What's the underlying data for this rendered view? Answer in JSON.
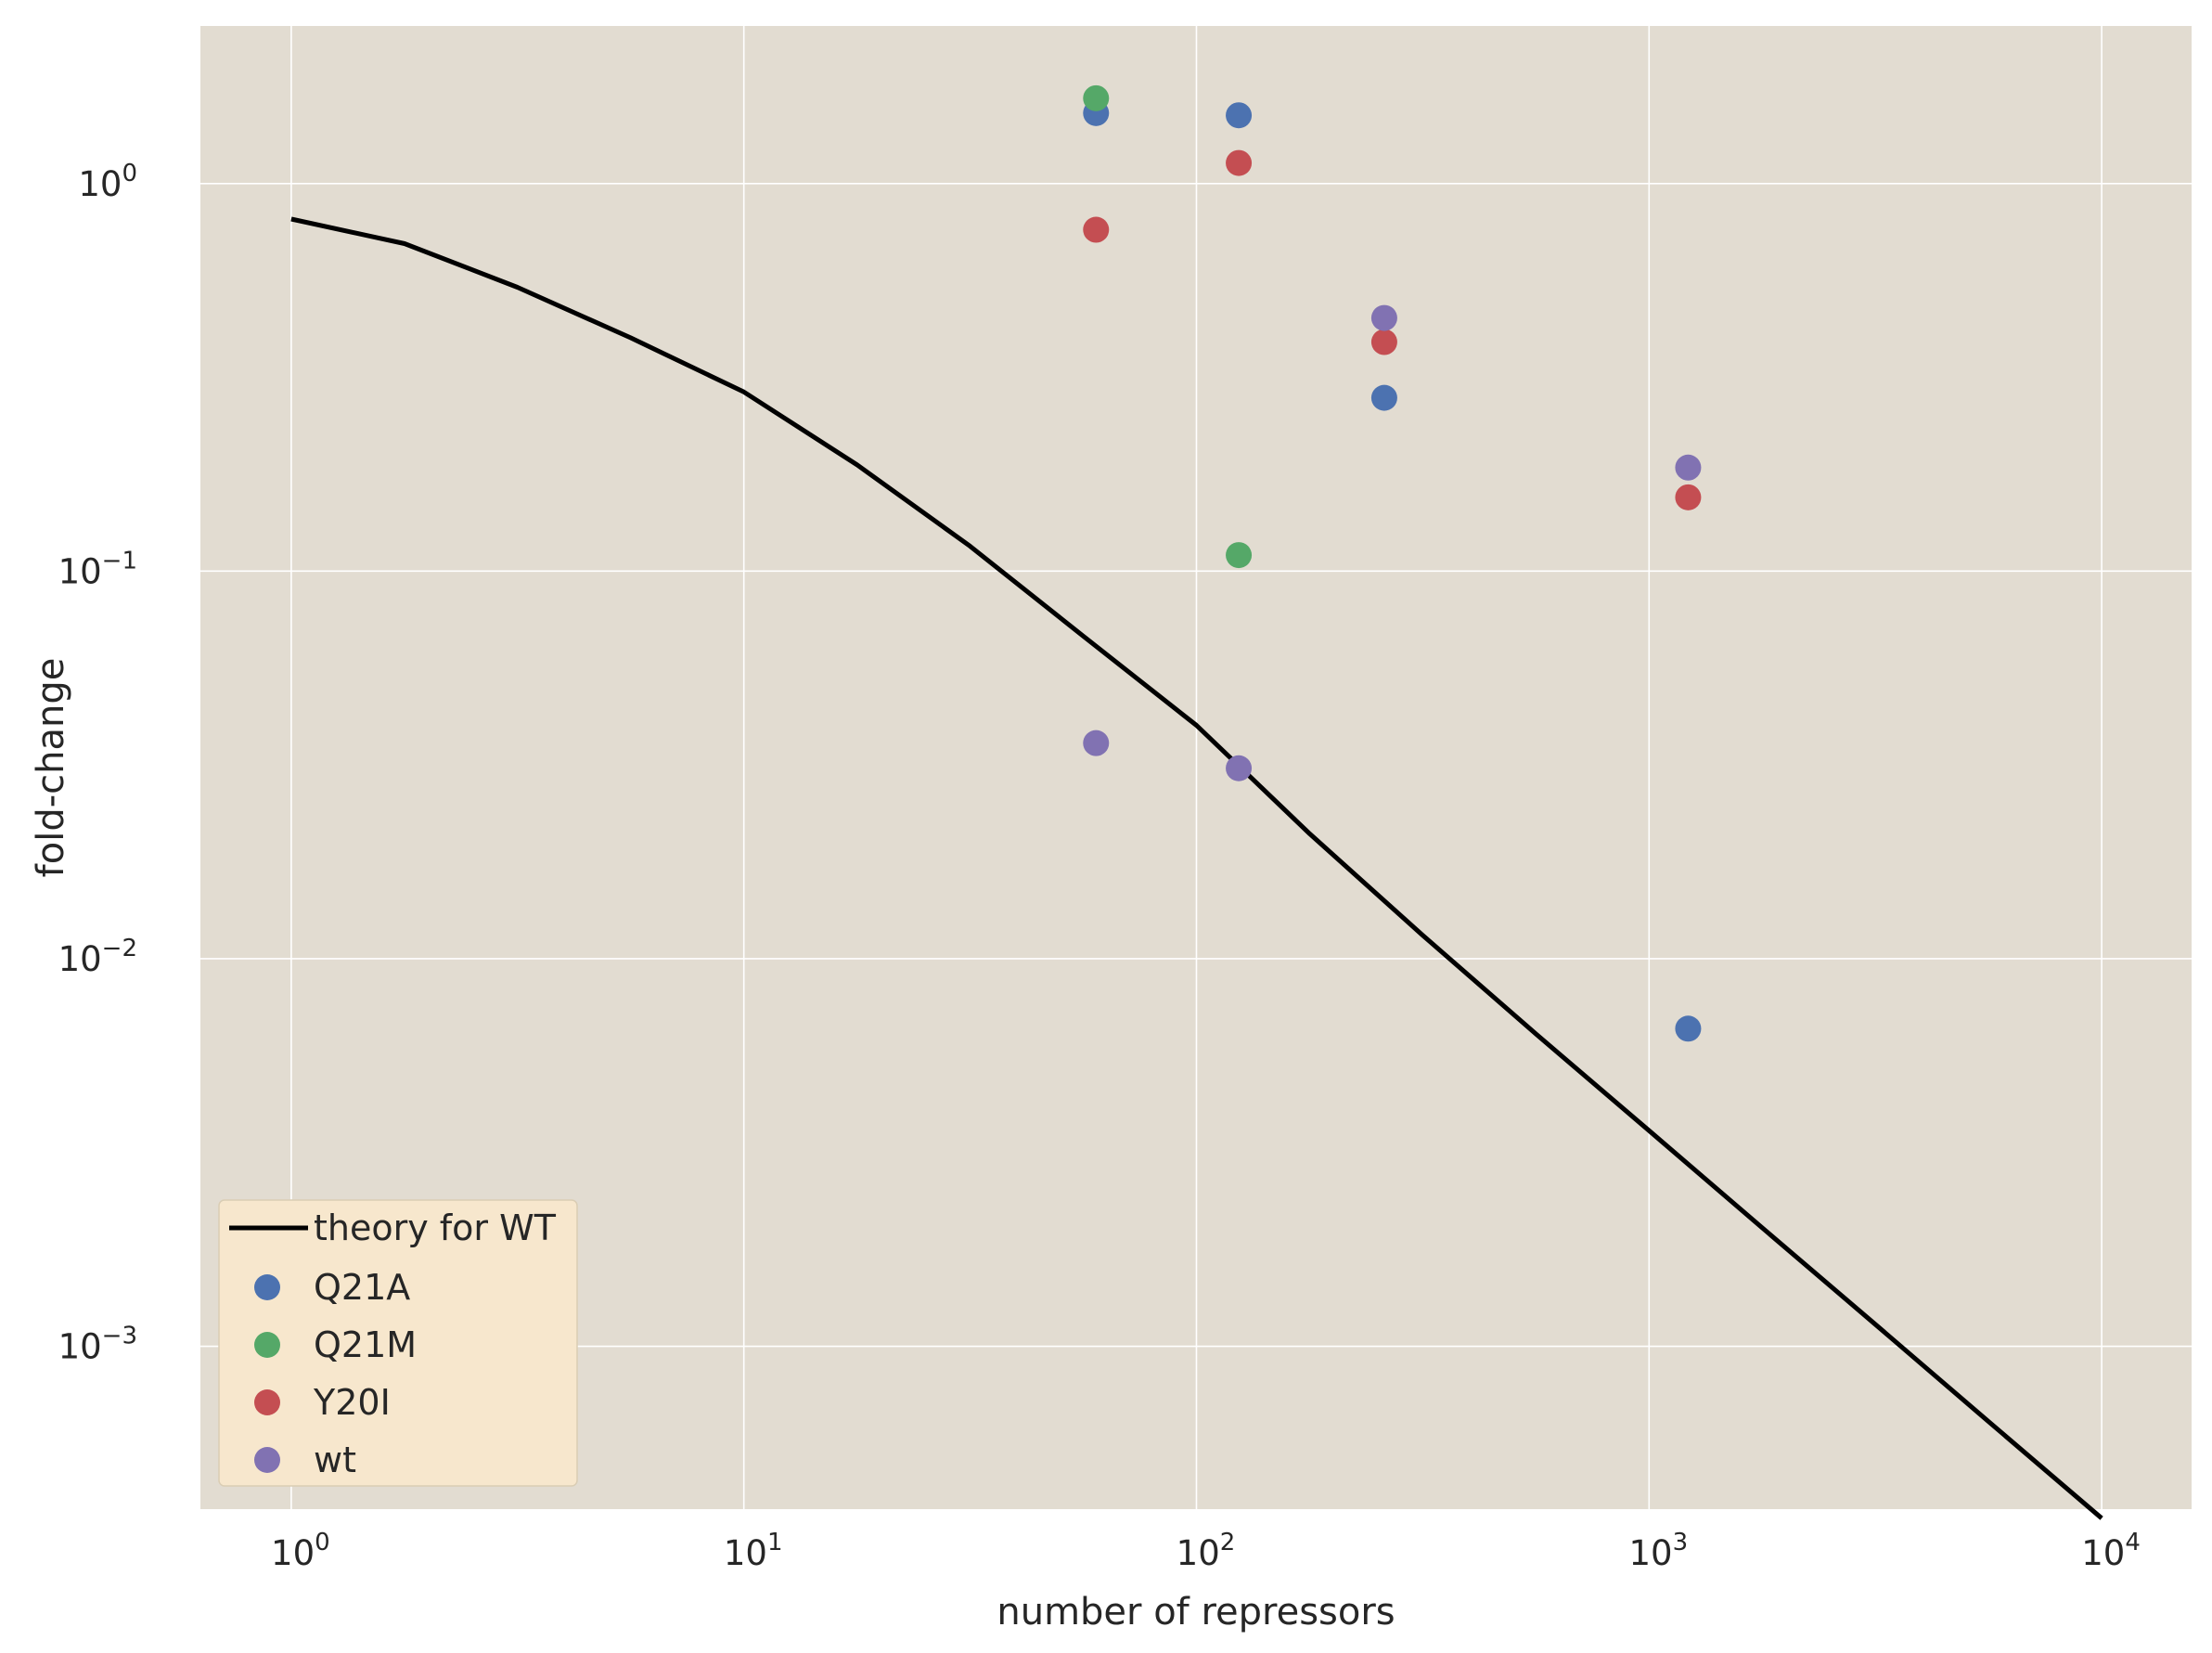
{
  "chart_data": {
    "type": "scatter",
    "title": "",
    "xlabel": "number of repressors",
    "ylabel": "fold-change",
    "xscale": "log",
    "yscale": "log",
    "xlim": [
      0.63,
      15800
    ],
    "ylim": [
      0.00038,
      2.55
    ],
    "xticks": [
      {
        "base": "10",
        "exp": "0",
        "value": 1
      },
      {
        "base": "10",
        "exp": "1",
        "value": 10
      },
      {
        "base": "10",
        "exp": "2",
        "value": 100
      },
      {
        "base": "10",
        "exp": "3",
        "value": 1000
      },
      {
        "base": "10",
        "exp": "4",
        "value": 10000
      }
    ],
    "yticks": [
      {
        "base": "10",
        "exp": "0",
        "value": 1
      },
      {
        "base": "10",
        "exp": "−1",
        "value": 0.1
      },
      {
        "base": "10",
        "exp": "−2",
        "value": 0.01
      },
      {
        "base": "10",
        "exp": "−3",
        "value": 0.001
      }
    ],
    "grid": true,
    "legend_position": "lower-left",
    "background": "#e2dcd1",
    "legend_background": "#f7e7cd",
    "theory": {
      "name": "theory for WT",
      "color": "#000000",
      "x": [
        1,
        1.78,
        3.16,
        5.62,
        10,
        17.8,
        31.6,
        56.2,
        100,
        178,
        316,
        562,
        1000,
        1780,
        3160,
        5620,
        10000
      ],
      "y": [
        0.81,
        0.7,
        0.54,
        0.4,
        0.29,
        0.188,
        0.116,
        0.068,
        0.04,
        0.021,
        0.0115,
        0.0064,
        0.0036,
        0.00202,
        0.00114,
        0.00064,
        0.00036
      ]
    },
    "series": [
      {
        "name": "Q21A",
        "color": "#4c72b0",
        "x": [
          60,
          124,
          260,
          1220
        ],
        "y": [
          1.52,
          1.5,
          0.28,
          0.0066
        ]
      },
      {
        "name": "Q21M",
        "color": "#55a868",
        "x": [
          60,
          124
        ],
        "y": [
          1.66,
          0.11
        ]
      },
      {
        "name": "Y20I",
        "color": "#c44e52",
        "x": [
          60,
          124,
          260,
          1220
        ],
        "y": [
          0.76,
          1.13,
          0.39,
          0.155
        ]
      },
      {
        "name": "wt",
        "color": "#8172b2",
        "x": [
          60,
          124,
          260,
          1220
        ],
        "y": [
          0.036,
          0.031,
          0.45,
          0.185
        ]
      }
    ]
  }
}
